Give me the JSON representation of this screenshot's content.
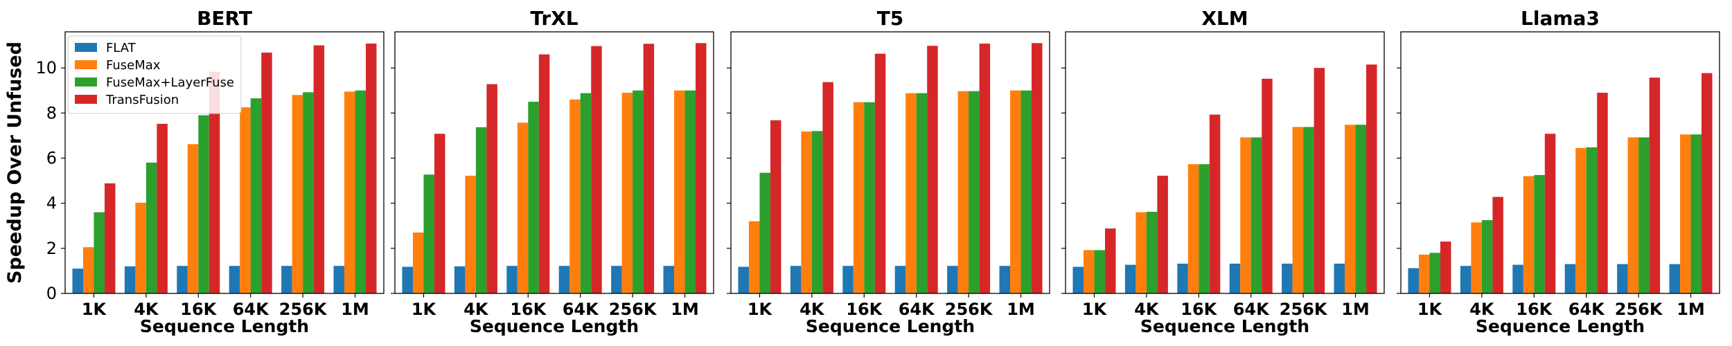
{
  "chart_data": {
    "type": "bar",
    "ylabel": "Speedup Over Unfused",
    "xlabel": "Sequence Length",
    "ylim": [
      0,
      11.6
    ],
    "yticks": [
      0,
      2,
      4,
      6,
      8,
      10
    ],
    "grid": false,
    "legend_location": "upper-left of first panel",
    "categories": [
      "1K",
      "4K",
      "16K",
      "64K",
      "256K",
      "1M"
    ],
    "series_names": [
      "FLAT",
      "FuseMax",
      "FuseMax+LayerFuse",
      "TransFusion"
    ],
    "series_colors": [
      "#1f77b4",
      "#ff7f0e",
      "#2ca02c",
      "#d62728"
    ],
    "panels": [
      {
        "title": "BERT",
        "series": [
          {
            "name": "FLAT",
            "values": [
              1.1,
              1.2,
              1.22,
              1.22,
              1.22,
              1.22
            ]
          },
          {
            "name": "FuseMax",
            "values": [
              2.05,
              4.02,
              6.62,
              8.25,
              8.8,
              8.95
            ]
          },
          {
            "name": "FuseMax+LayerFuse",
            "values": [
              3.6,
              5.8,
              7.9,
              8.65,
              8.92,
              9.0
            ]
          },
          {
            "name": "TransFusion",
            "values": [
              4.88,
              7.52,
              9.83,
              10.68,
              11.0,
              11.08
            ]
          }
        ]
      },
      {
        "title": "TrXL",
        "series": [
          {
            "name": "FLAT",
            "values": [
              1.18,
              1.2,
              1.22,
              1.22,
              1.22,
              1.22
            ]
          },
          {
            "name": "FuseMax",
            "values": [
              2.7,
              5.22,
              7.57,
              8.6,
              8.9,
              9.0
            ]
          },
          {
            "name": "FuseMax+LayerFuse",
            "values": [
              5.27,
              7.37,
              8.5,
              8.88,
              9.0,
              9.0
            ]
          },
          {
            "name": "TransFusion",
            "values": [
              7.08,
              9.28,
              10.6,
              10.97,
              11.07,
              11.1
            ]
          }
        ]
      },
      {
        "title": "T5",
        "series": [
          {
            "name": "FLAT",
            "values": [
              1.18,
              1.22,
              1.22,
              1.22,
              1.22,
              1.22
            ]
          },
          {
            "name": "FuseMax",
            "values": [
              3.2,
              7.18,
              8.48,
              8.88,
              8.97,
              9.0
            ]
          },
          {
            "name": "FuseMax+LayerFuse",
            "values": [
              5.35,
              7.2,
              8.48,
              8.88,
              8.97,
              9.0
            ]
          },
          {
            "name": "TransFusion",
            "values": [
              7.68,
              9.37,
              10.63,
              10.98,
              11.08,
              11.1
            ]
          }
        ]
      },
      {
        "title": "XLM",
        "series": [
          {
            "name": "FLAT",
            "values": [
              1.18,
              1.27,
              1.32,
              1.32,
              1.32,
              1.32
            ]
          },
          {
            "name": "FuseMax",
            "values": [
              1.92,
              3.6,
              5.73,
              6.92,
              7.38,
              7.48
            ]
          },
          {
            "name": "FuseMax+LayerFuse",
            "values": [
              1.92,
              3.62,
              5.73,
              6.92,
              7.38,
              7.48
            ]
          },
          {
            "name": "TransFusion",
            "values": [
              2.88,
              5.22,
              7.93,
              9.52,
              10.0,
              10.15
            ]
          }
        ]
      },
      {
        "title": "Llama3",
        "series": [
          {
            "name": "FLAT",
            "values": [
              1.12,
              1.22,
              1.27,
              1.3,
              1.3,
              1.3
            ]
          },
          {
            "name": "FuseMax",
            "values": [
              1.72,
              3.15,
              5.2,
              6.45,
              6.92,
              7.05
            ]
          },
          {
            "name": "FuseMax+LayerFuse",
            "values": [
              1.8,
              3.25,
              5.25,
              6.48,
              6.92,
              7.05
            ]
          },
          {
            "name": "TransFusion",
            "values": [
              2.3,
              4.28,
              7.08,
              8.9,
              9.57,
              9.77
            ]
          }
        ]
      }
    ]
  }
}
